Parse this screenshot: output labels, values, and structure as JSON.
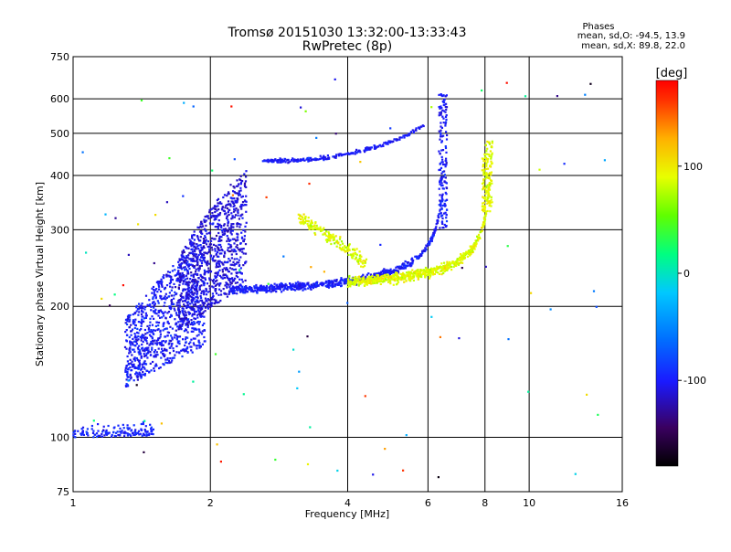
{
  "chart_data": {
    "type": "scatter",
    "title": "Tromsø 20151030 13:32:00-13:33:43",
    "subtitle": "RwPretec (8p)",
    "xlabel": "Frequency [MHz]",
    "ylabel": "Stationary phase Virtual Height [km]",
    "x_scale": "log",
    "y_scale": "log",
    "xlim": [
      1,
      16
    ],
    "ylim": [
      75,
      750
    ],
    "x_ticks": [
      1,
      2,
      4,
      6,
      8,
      10,
      16
    ],
    "y_ticks": [
      75,
      100,
      200,
      300,
      400,
      500,
      600,
      750
    ],
    "grid": true,
    "stats": {
      "heading": "Phases",
      "line_o": "mean, sd,O: -94.5, 13.9",
      "line_x": "mean, sd,X:  89.8, 22.0"
    },
    "colorbar": {
      "label": "[deg]",
      "ticks": [
        100,
        0,
        -100
      ],
      "range": [
        -180,
        180
      ]
    },
    "traces": [
      {
        "x_range": [
          1.0,
          1.5
        ],
        "y_base": 100,
        "kind": "low",
        "phase": -95
      },
      {
        "x_range": [
          1.3,
          1.95
        ],
        "y_range": [
          130,
          290
        ],
        "kind": "cloud",
        "phase": -100
      },
      {
        "x_range": [
          1.7,
          2.4
        ],
        "y_range": [
          175,
          420
        ],
        "kind": "cloud",
        "phase": -110
      },
      {
        "x_range": [
          2.2,
          6.4
        ],
        "y_range": [
          210,
          285
        ],
        "kind": "O-trace-F2",
        "phase": -100,
        "cusp": 6.6
      },
      {
        "x_range": [
          3.1,
          8.4
        ],
        "y_range": [
          215,
          470
        ],
        "kind": "X-trace-F2",
        "phase": 90,
        "cusp": 8.3
      },
      {
        "x_range": [
          2.6,
          5.9
        ],
        "y_range": [
          430,
          520
        ],
        "kind": "O-echo-2hop",
        "phase": -100
      }
    ]
  }
}
